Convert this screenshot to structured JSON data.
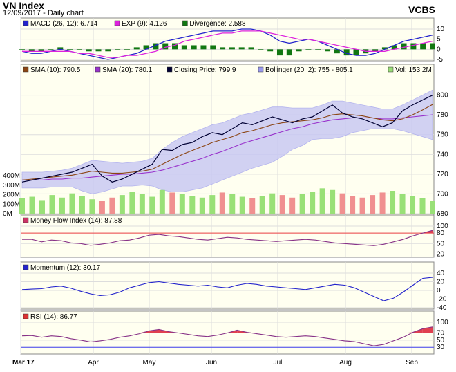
{
  "header": {
    "title": "VN Index",
    "subtitle": "12/09/2017 - Daily chart",
    "brand": "VCBS"
  },
  "panels": {
    "macd": {
      "legend": [
        {
          "label": "MACD (26, 12): 6.714",
          "color": "#2222cc"
        },
        {
          "label": "EXP (9): 4.126",
          "color": "#dd22dd"
        },
        {
          "label": "Divergence: 2.588",
          "color": "#117711"
        }
      ]
    },
    "price": {
      "legend": [
        {
          "label": "SMA (10): 790.5",
          "color": "#8b4513"
        },
        {
          "label": "SMA (20): 780.1",
          "color": "#9933cc"
        },
        {
          "label": "Closing Price: 799.9",
          "color": "#000033"
        },
        {
          "label": "Bollinger (20, 2): 755 - 805.1",
          "color": "#9999ee"
        },
        {
          "label": "Vol: 153.2M",
          "color": "#99dd77"
        }
      ]
    },
    "mfi": {
      "legend": [
        {
          "label": "Money Flow Index (14): 87.88",
          "color": "#cc3366"
        }
      ]
    },
    "momentum": {
      "legend": [
        {
          "label": "Momentum (12): 30.17",
          "color": "#2222cc"
        }
      ]
    },
    "rsi": {
      "legend": [
        {
          "label": "RSI (14): 86.77",
          "color": "#dd3333"
        }
      ]
    }
  },
  "colors": {
    "upper_line": "#ee4444",
    "lower_line": "#4444ee",
    "band": "#c9c9f3",
    "panel_bg": "#fffff0",
    "volume_up": "#99e077",
    "volume_down": "#f09090"
  },
  "chart_data": [
    {
      "type": "line",
      "title": "MACD",
      "ylim": [
        -5,
        10
      ],
      "yticks": [
        10,
        5,
        0,
        -5
      ],
      "series": [
        {
          "name": "MACD",
          "values": [
            -1,
            -2,
            -2,
            -1,
            0,
            -1,
            -2,
            -3,
            -4,
            -5,
            -4,
            -3,
            -2,
            0,
            2,
            4,
            5,
            6,
            7,
            8,
            9,
            9,
            9,
            10,
            10,
            9,
            7,
            4,
            3,
            4,
            5,
            4,
            2,
            0,
            -2,
            -3,
            -3,
            -2,
            0,
            2,
            4,
            5,
            6,
            7
          ]
        },
        {
          "name": "EXP",
          "values": [
            -1,
            -1,
            -1,
            -1,
            -1,
            -1,
            -2,
            -2,
            -3,
            -4,
            -4,
            -3,
            -3,
            -2,
            -1,
            1,
            2,
            4,
            5,
            6,
            7,
            8,
            8,
            9,
            9,
            9,
            8,
            7,
            6,
            5,
            5,
            4,
            3,
            2,
            1,
            0,
            -1,
            -1,
            -1,
            0,
            1,
            2,
            3,
            4
          ]
        },
        {
          "name": "Divergence",
          "values": [
            0,
            -1,
            -1,
            0,
            1,
            0,
            0,
            -1,
            -1,
            -1,
            0,
            0,
            1,
            2,
            3,
            3,
            3,
            2,
            2,
            2,
            2,
            1,
            1,
            1,
            1,
            0,
            -1,
            -3,
            -3,
            -1,
            0,
            0,
            -1,
            -2,
            -3,
            -3,
            -2,
            -1,
            1,
            2,
            3,
            3,
            3,
            3
          ]
        }
      ]
    },
    {
      "type": "line",
      "title": "Price",
      "ylim": [
        680,
        820
      ],
      "yticks": [
        800,
        780,
        760,
        740,
        720,
        700,
        680
      ],
      "vol_ticks": [
        "400M",
        "300M",
        "200M",
        "100M",
        "0M"
      ],
      "series": [
        {
          "name": "Closing Price",
          "values": [
            712,
            714,
            716,
            718,
            720,
            722,
            726,
            730,
            718,
            712,
            715,
            720,
            725,
            730,
            745,
            744,
            750,
            752,
            758,
            762,
            760,
            766,
            772,
            770,
            774,
            778,
            775,
            772,
            776,
            778,
            784,
            790,
            782,
            778,
            776,
            772,
            768,
            772,
            784,
            790,
            795,
            799.9
          ]
        },
        {
          "name": "SMA (10)",
          "values": [
            714,
            715,
            716,
            717,
            718,
            719,
            721,
            723,
            722,
            721,
            721,
            722,
            723,
            725,
            730,
            735,
            740,
            744,
            748,
            752,
            755,
            758,
            762,
            764,
            767,
            770,
            772,
            773,
            774,
            775,
            777,
            780,
            781,
            780,
            779,
            777,
            775,
            774,
            776,
            780,
            785,
            790.5
          ]
        },
        {
          "name": "SMA (20)",
          "values": [
            714,
            714,
            714,
            715,
            715,
            716,
            716,
            717,
            718,
            719,
            720,
            720,
            721,
            722,
            724,
            727,
            730,
            733,
            736,
            740,
            743,
            747,
            751,
            754,
            757,
            760,
            763,
            766,
            768,
            771,
            773,
            775,
            776,
            777,
            777,
            777,
            776,
            776,
            777,
            778,
            779,
            780.1
          ]
        },
        {
          "name": "Bollinger Upper",
          "values": [
            722,
            722,
            722,
            723,
            724,
            726,
            730,
            734,
            733,
            732,
            731,
            732,
            733,
            736,
            745,
            752,
            758,
            762,
            766,
            770,
            772,
            776,
            780,
            782,
            785,
            788,
            788,
            787,
            787,
            787,
            790,
            794,
            794,
            792,
            790,
            788,
            786,
            786,
            790,
            795,
            800,
            805.1
          ]
        },
        {
          "name": "Bollinger Lower",
          "values": [
            706,
            706,
            706,
            707,
            707,
            707,
            703,
            700,
            702,
            705,
            708,
            708,
            709,
            708,
            704,
            702,
            702,
            704,
            706,
            710,
            714,
            718,
            722,
            726,
            729,
            732,
            738,
            745,
            749,
            755,
            756,
            756,
            758,
            762,
            764,
            766,
            766,
            766,
            764,
            761,
            758,
            755
          ]
        },
        {
          "name": "Volume",
          "values": [
            180,
            200,
            160,
            220,
            190,
            240,
            210,
            170,
            150,
            190,
            220,
            260,
            230,
            200,
            280,
            250,
            230,
            210,
            190,
            220,
            250,
            230,
            200,
            180,
            210,
            240,
            220,
            190,
            230,
            260,
            300,
            280,
            240,
            210,
            190,
            220,
            250,
            270,
            230,
            210,
            180,
            153.2
          ]
        }
      ]
    },
    {
      "type": "line",
      "title": "Money Flow Index",
      "ylim": [
        15,
        100
      ],
      "yticks": [
        100,
        80,
        50,
        20
      ],
      "series": [
        {
          "name": "MFI",
          "values": [
            62,
            62,
            55,
            60,
            58,
            52,
            50,
            45,
            48,
            52,
            58,
            60,
            66,
            74,
            76,
            72,
            70,
            66,
            62,
            60,
            64,
            68,
            66,
            62,
            60,
            58,
            56,
            58,
            60,
            62,
            60,
            56,
            52,
            50,
            48,
            46,
            44,
            48,
            55,
            62,
            72,
            80,
            87.88
          ]
        }
      ]
    },
    {
      "type": "line",
      "title": "Momentum",
      "ylim": [
        -40,
        40
      ],
      "yticks": [
        40,
        20,
        0,
        -20,
        -40
      ],
      "series": [
        {
          "name": "Momentum",
          "values": [
            2,
            3,
            4,
            8,
            10,
            5,
            -2,
            -8,
            -12,
            -10,
            -4,
            6,
            12,
            18,
            20,
            17,
            14,
            12,
            10,
            12,
            8,
            6,
            12,
            16,
            14,
            10,
            8,
            6,
            4,
            2,
            6,
            10,
            14,
            12,
            6,
            -4,
            -14,
            -24,
            -18,
            -4,
            12,
            28,
            30.17
          ]
        }
      ]
    },
    {
      "type": "line",
      "title": "RSI",
      "ylim": [
        15,
        100
      ],
      "yticks": [
        100,
        70,
        50,
        30
      ],
      "series": [
        {
          "name": "RSI",
          "values": [
            62,
            63,
            58,
            62,
            60,
            54,
            50,
            45,
            48,
            52,
            58,
            62,
            68,
            76,
            80,
            74,
            70,
            66,
            62,
            60,
            64,
            70,
            78,
            72,
            68,
            64,
            60,
            58,
            60,
            62,
            60,
            56,
            52,
            48,
            46,
            40,
            34,
            38,
            48,
            58,
            72,
            82,
            86.77
          ]
        }
      ]
    }
  ],
  "x_axis": {
    "labels": [
      "Mar 17",
      "Apr",
      "May",
      "Jun",
      "Jul",
      "Aug",
      "Sep"
    ]
  }
}
